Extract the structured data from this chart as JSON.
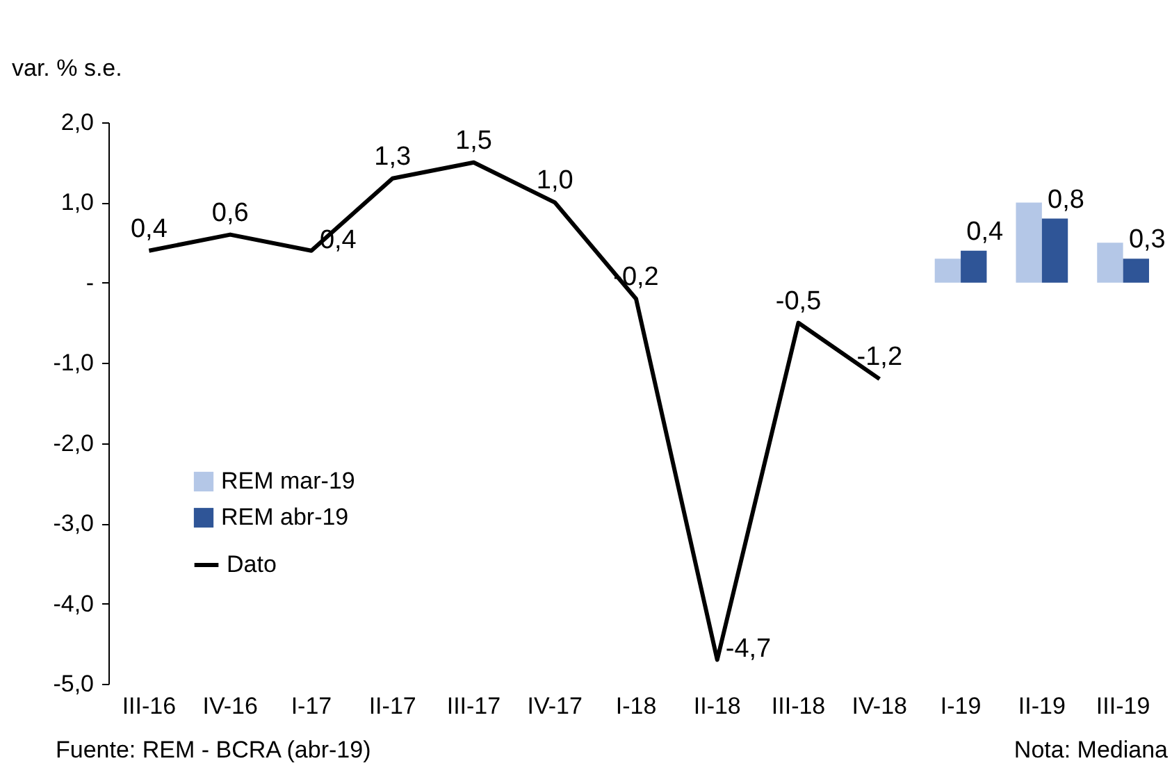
{
  "chart_data": {
    "type": "bar",
    "ylabel": "var. % s.e.",
    "categories": [
      "III-16",
      "IV-16",
      "I-17",
      "II-17",
      "III-17",
      "IV-17",
      "I-18",
      "II-18",
      "III-18",
      "IV-18",
      "I-19",
      "II-19",
      "III-19"
    ],
    "series": [
      {
        "name": "REM mar-19",
        "color": "#b4c7e7",
        "values": [
          null,
          null,
          null,
          null,
          null,
          null,
          null,
          null,
          null,
          null,
          0.3,
          1.0,
          0.5
        ]
      },
      {
        "name": "REM abr-19",
        "color": "#2f5597",
        "values": [
          null,
          null,
          null,
          null,
          null,
          null,
          null,
          null,
          null,
          null,
          0.4,
          0.8,
          0.3
        ],
        "value_labels": [
          null,
          null,
          null,
          null,
          null,
          null,
          null,
          null,
          null,
          null,
          "0,4",
          "0,8",
          "0,3"
        ]
      },
      {
        "name": "Dato",
        "type": "line",
        "color": "#000000",
        "values": [
          0.4,
          0.6,
          0.4,
          1.3,
          1.5,
          1.0,
          -0.2,
          -4.7,
          -0.5,
          -1.2,
          null,
          null,
          null
        ],
        "value_labels": [
          "0,4",
          "0,6",
          "0,4",
          "1,3",
          "1,5",
          "1,0",
          "-0,2",
          "-4,7",
          "-0,5",
          "-1,2",
          null,
          null,
          null
        ]
      }
    ],
    "ylim": [
      -5,
      2
    ],
    "yticks": [
      {
        "value": -5,
        "label": "-5,0"
      },
      {
        "value": -4,
        "label": "-4,0"
      },
      {
        "value": -3,
        "label": "-3,0"
      },
      {
        "value": -2,
        "label": "-2,0"
      },
      {
        "value": -1,
        "label": "-1,0"
      },
      {
        "value": 0,
        "label": "-"
      },
      {
        "value": 1,
        "label": "1,0"
      },
      {
        "value": 2,
        "label": "2,0"
      }
    ],
    "grid": false,
    "legend": "bottom left",
    "annotations": [
      "Fuente: REM - BCRA (abr-19)",
      "Nota: Mediana"
    ]
  }
}
